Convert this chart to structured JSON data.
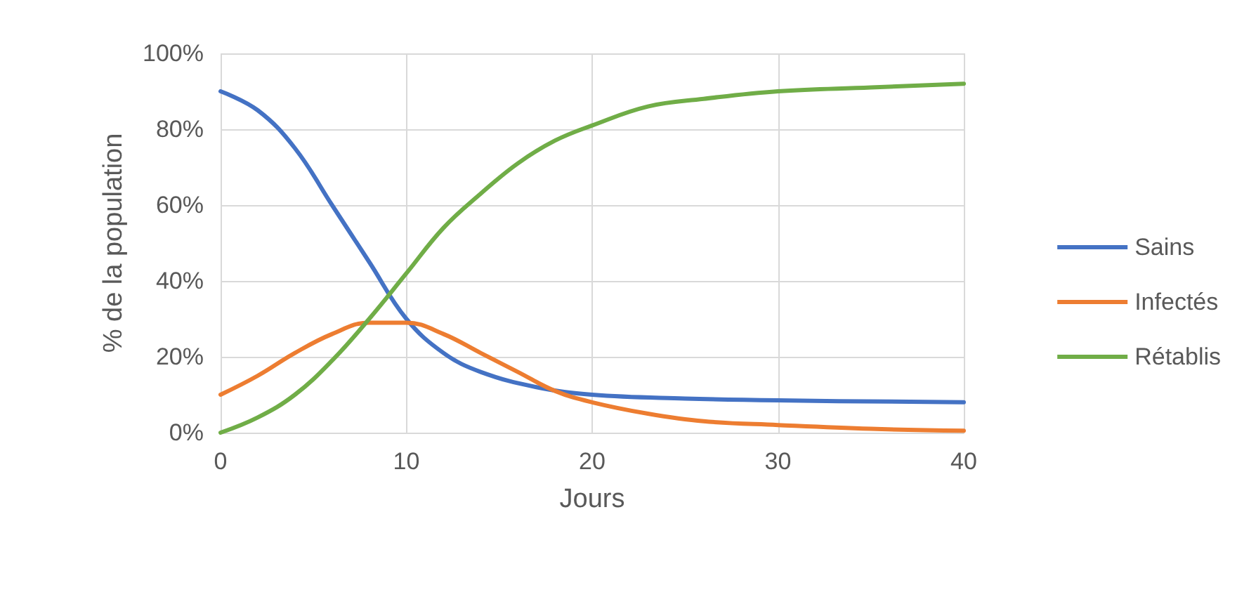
{
  "chart_data": {
    "type": "line",
    "xlabel": "Jours",
    "ylabel": "% de la population",
    "xlim": [
      0,
      40
    ],
    "xticks": [
      0,
      10,
      20,
      30,
      40
    ],
    "ylim": [
      0,
      100
    ],
    "yticks": [
      {
        "value": 0,
        "label": "0%"
      },
      {
        "value": 20,
        "label": "20%"
      },
      {
        "value": 40,
        "label": "40%"
      },
      {
        "value": 60,
        "label": "60%"
      },
      {
        "value": 80,
        "label": "80%"
      },
      {
        "value": 100,
        "label": "100%"
      }
    ],
    "grid": true,
    "legend": "right",
    "marker": "none",
    "line_style": "solid",
    "series": [
      {
        "name": "Sains",
        "color": "#4472c4",
        "x": [
          0,
          2,
          4,
          6,
          8,
          10,
          12,
          14,
          17,
          20,
          25,
          30,
          40
        ],
        "values": [
          90,
          85,
          75,
          60,
          45,
          30,
          21,
          16,
          12,
          10,
          9,
          8.5,
          8
        ]
      },
      {
        "name": "Infectés",
        "color": "#ed7d31",
        "x": [
          0,
          2,
          4,
          6,
          8,
          10,
          12,
          14,
          16,
          18,
          20,
          23,
          26,
          30,
          35,
          40
        ],
        "values": [
          10,
          15,
          21,
          26,
          29,
          29,
          26,
          21,
          16,
          11,
          8,
          5,
          3,
          2,
          1,
          0.5
        ]
      },
      {
        "name": "Rétablis",
        "color": "#70ad47",
        "x": [
          0,
          2,
          4,
          6,
          8,
          10,
          12,
          14,
          16,
          18,
          20,
          23,
          26,
          30,
          35,
          40
        ],
        "values": [
          0,
          4,
          10,
          19,
          30,
          42,
          54,
          63,
          71,
          77,
          81,
          86,
          88,
          90,
          91,
          92
        ]
      }
    ]
  }
}
